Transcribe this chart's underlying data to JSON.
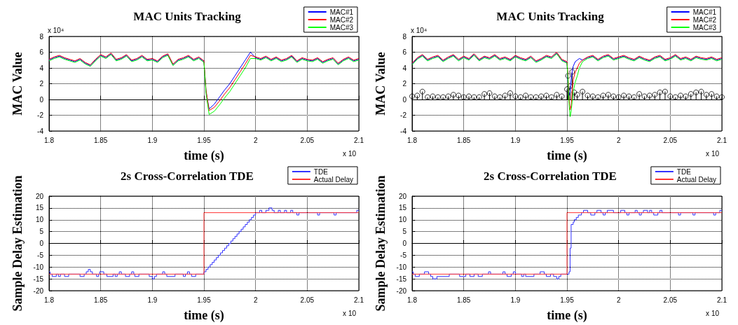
{
  "chart_data": [
    {
      "type": "line",
      "title": "MAC Units Tracking",
      "xlabel": "time (s)",
      "ylabel": "MAC Value",
      "annotations": [
        "x 10⁴",
        "x 10"
      ],
      "xlim": [
        1.8,
        2.1
      ],
      "xticks": [
        1.8,
        1.85,
        1.9,
        1.95,
        2,
        2.05,
        2.1
      ],
      "ylim": [
        -4,
        8
      ],
      "yticks": [
        -4,
        -2,
        0,
        2,
        4,
        6,
        8
      ],
      "grid": true,
      "legend": "top right",
      "x": [
        1.8,
        1.805,
        1.81,
        1.815,
        1.82,
        1.825,
        1.83,
        1.835,
        1.84,
        1.845,
        1.85,
        1.855,
        1.86,
        1.865,
        1.87,
        1.875,
        1.88,
        1.885,
        1.89,
        1.895,
        1.9,
        1.905,
        1.91,
        1.915,
        1.92,
        1.925,
        1.93,
        1.935,
        1.94,
        1.945,
        1.95,
        1.952,
        1.955,
        1.96,
        1.965,
        1.97,
        1.975,
        1.98,
        1.985,
        1.99,
        1.995,
        2.0,
        2.005,
        2.01,
        2.015,
        2.02,
        2.025,
        2.03,
        2.035,
        2.04,
        2.045,
        2.05,
        2.055,
        2.06,
        2.065,
        2.07,
        2.075,
        2.08,
        2.085,
        2.09,
        2.095,
        2.1
      ],
      "series": [
        {
          "name": "MAC#1",
          "color": "#0000ff",
          "values": [
            5.0,
            5.3,
            5.5,
            5.2,
            5.0,
            4.8,
            5.1,
            4.6,
            4.3,
            5.0,
            5.6,
            5.3,
            5.8,
            5.0,
            5.2,
            5.6,
            4.9,
            5.1,
            5.5,
            5.0,
            5.1,
            4.8,
            5.4,
            5.7,
            4.4,
            5.0,
            5.2,
            5.5,
            5.0,
            5.3,
            4.8,
            1.0,
            -1.2,
            -0.6,
            0.3,
            1.2,
            2.0,
            3.0,
            4.0,
            5.0,
            6.0,
            5.3,
            5.1,
            5.4,
            5.0,
            5.3,
            4.9,
            5.1,
            5.5,
            4.8,
            5.2,
            5.0,
            4.9,
            5.2,
            4.7,
            5.0,
            5.2,
            4.5,
            5.0,
            5.3,
            4.9,
            5.1
          ]
        },
        {
          "name": "MAC#2",
          "color": "#ff0000",
          "values": [
            5.1,
            5.4,
            5.6,
            5.3,
            5.1,
            4.9,
            5.2,
            4.7,
            4.4,
            5.1,
            5.7,
            5.4,
            5.9,
            5.1,
            5.3,
            5.7,
            5.0,
            5.2,
            5.6,
            5.1,
            5.2,
            4.9,
            5.5,
            5.8,
            4.5,
            5.1,
            5.3,
            5.6,
            5.1,
            5.4,
            4.9,
            1.2,
            -1.4,
            -1.0,
            -0.2,
            0.7,
            1.5,
            2.5,
            3.5,
            4.5,
            5.6,
            5.4,
            5.2,
            5.5,
            5.1,
            5.4,
            5.0,
            5.2,
            5.6,
            4.9,
            5.3,
            5.1,
            5.0,
            5.3,
            4.8,
            5.1,
            5.3,
            4.6,
            5.1,
            5.4,
            5.0,
            5.2
          ]
        },
        {
          "name": "MAC#3",
          "color": "#00ff00",
          "values": [
            4.9,
            5.2,
            5.4,
            5.1,
            4.9,
            4.7,
            5.0,
            4.5,
            4.2,
            4.9,
            5.5,
            5.2,
            5.7,
            4.9,
            5.1,
            5.5,
            4.8,
            5.0,
            5.4,
            4.9,
            5.0,
            4.7,
            5.3,
            5.6,
            4.3,
            4.9,
            5.1,
            5.4,
            4.9,
            5.2,
            4.7,
            0.8,
            -1.9,
            -1.5,
            -0.7,
            0.2,
            1.0,
            2.0,
            3.0,
            4.0,
            5.2,
            5.2,
            5.0,
            5.3,
            4.9,
            5.2,
            4.8,
            5.0,
            5.4,
            4.7,
            5.1,
            4.9,
            4.8,
            5.1,
            4.6,
            4.9,
            5.1,
            4.4,
            4.9,
            5.2,
            4.8,
            5.0
          ]
        }
      ]
    },
    {
      "type": "line",
      "title": "MAC Units Tracking",
      "xlabel": "time (s)",
      "ylabel": "MAC Value",
      "annotations": [
        "x 10⁴",
        "x 10"
      ],
      "xlim": [
        1.8,
        2.1
      ],
      "xticks": [
        1.8,
        1.85,
        1.9,
        1.95,
        2,
        2.05,
        2.1
      ],
      "ylim": [
        -4,
        8
      ],
      "yticks": [
        -4,
        -2,
        0,
        2,
        4,
        6,
        8
      ],
      "grid": true,
      "legend": "top right",
      "x": [
        1.8,
        1.805,
        1.81,
        1.815,
        1.82,
        1.825,
        1.83,
        1.835,
        1.84,
        1.845,
        1.85,
        1.855,
        1.86,
        1.865,
        1.87,
        1.875,
        1.88,
        1.885,
        1.89,
        1.895,
        1.9,
        1.905,
        1.91,
        1.915,
        1.92,
        1.925,
        1.93,
        1.935,
        1.94,
        1.945,
        1.95,
        1.951,
        1.952,
        1.953,
        1.954,
        1.955,
        1.956,
        1.958,
        1.96,
        1.962,
        1.965,
        1.97,
        1.975,
        1.98,
        1.985,
        1.99,
        1.995,
        2.0,
        2.005,
        2.01,
        2.015,
        2.02,
        2.025,
        2.03,
        2.035,
        2.04,
        2.045,
        2.05,
        2.055,
        2.06,
        2.065,
        2.07,
        2.075,
        2.08,
        2.085,
        2.09,
        2.095,
        2.1
      ],
      "series": [
        {
          "name": "MAC#1",
          "color": "#0000ff",
          "values": [
            4.5,
            5.2,
            5.6,
            5.0,
            5.3,
            5.5,
            4.9,
            5.3,
            5.6,
            5.0,
            5.4,
            5.1,
            5.7,
            5.0,
            5.4,
            5.2,
            5.6,
            5.1,
            5.3,
            5.0,
            5.5,
            5.2,
            5.0,
            5.4,
            4.8,
            5.1,
            5.5,
            5.3,
            5.9,
            5.0,
            4.7,
            2.0,
            0.5,
            1.0,
            2.5,
            3.5,
            4.2,
            4.8,
            5.0,
            5.2,
            5.0,
            5.3,
            5.5,
            5.0,
            5.4,
            5.6,
            5.1,
            5.3,
            5.5,
            5.2,
            5.0,
            5.4,
            5.1,
            4.9,
            5.3,
            5.5,
            5.0,
            5.2,
            5.6,
            5.1,
            5.3,
            5.0,
            5.4,
            5.2,
            5.1,
            5.3,
            5.0,
            5.2
          ]
        },
        {
          "name": "MAC#2",
          "color": "#ff0000",
          "values": [
            4.6,
            5.3,
            5.7,
            5.1,
            5.4,
            5.6,
            5.0,
            5.4,
            5.7,
            5.1,
            5.5,
            5.2,
            5.8,
            5.1,
            5.5,
            5.3,
            5.7,
            5.2,
            5.4,
            5.1,
            5.6,
            5.3,
            5.1,
            5.5,
            4.9,
            5.2,
            5.6,
            5.4,
            6.0,
            5.1,
            4.8,
            3.0,
            0.0,
            -1.3,
            -0.8,
            1.0,
            2.5,
            3.5,
            4.0,
            4.6,
            5.0,
            5.4,
            5.6,
            5.1,
            5.5,
            5.7,
            5.2,
            5.4,
            5.6,
            5.3,
            5.1,
            5.5,
            5.2,
            5.0,
            5.4,
            5.6,
            5.1,
            5.3,
            5.7,
            5.2,
            5.4,
            5.1,
            5.5,
            5.3,
            5.2,
            5.4,
            5.1,
            5.3
          ]
        },
        {
          "name": "MAC#3",
          "color": "#00ff00",
          "values": [
            4.4,
            5.1,
            5.5,
            4.9,
            5.2,
            5.4,
            4.8,
            5.2,
            5.5,
            4.9,
            5.3,
            5.0,
            5.6,
            4.9,
            5.3,
            5.1,
            5.5,
            5.0,
            5.2,
            4.9,
            5.4,
            5.1,
            4.9,
            5.3,
            4.7,
            5.0,
            5.4,
            5.2,
            5.8,
            4.9,
            4.6,
            2.5,
            -0.5,
            -2.2,
            -1.5,
            -0.3,
            1.0,
            2.2,
            3.0,
            4.0,
            4.8,
            5.2,
            5.4,
            4.9,
            5.3,
            5.5,
            5.0,
            5.2,
            5.4,
            5.1,
            4.9,
            5.3,
            5.0,
            4.8,
            5.2,
            5.4,
            4.9,
            5.1,
            5.5,
            5.0,
            5.2,
            4.9,
            5.3,
            5.1,
            5.0,
            5.2,
            4.9,
            5.1
          ]
        },
        {
          "type": "lollipop",
          "color": "#000000",
          "marker": "circle",
          "x": [
            1.8,
            1.805,
            1.81,
            1.815,
            1.82,
            1.825,
            1.83,
            1.835,
            1.84,
            1.845,
            1.85,
            1.855,
            1.86,
            1.865,
            1.87,
            1.875,
            1.88,
            1.885,
            1.89,
            1.895,
            1.9,
            1.905,
            1.91,
            1.915,
            1.92,
            1.925,
            1.93,
            1.935,
            1.94,
            1.945,
            1.95,
            1.951,
            1.953,
            1.955,
            1.957,
            1.96,
            1.965,
            1.97,
            1.975,
            1.98,
            1.985,
            1.99,
            1.995,
            2.0,
            2.005,
            2.01,
            2.015,
            2.02,
            2.025,
            2.03,
            2.035,
            2.04,
            2.045,
            2.05,
            2.055,
            2.06,
            2.065,
            2.07,
            2.075,
            2.08,
            2.085,
            2.09,
            2.095,
            2.1
          ],
          "values": [
            0.4,
            0.5,
            1.0,
            0.3,
            0.4,
            0.3,
            0.3,
            0.4,
            0.6,
            0.5,
            0.3,
            0.4,
            0.3,
            0.3,
            0.7,
            0.8,
            0.4,
            0.3,
            0.5,
            0.8,
            0.4,
            0.3,
            0.5,
            0.3,
            0.3,
            0.4,
            0.5,
            0.3,
            0.6,
            0.4,
            1.3,
            3.0,
            1.7,
            3.5,
            0.9,
            0.6,
            1.0,
            0.5,
            0.4,
            0.3,
            0.5,
            0.6,
            0.4,
            0.3,
            0.5,
            0.4,
            0.3,
            0.7,
            0.4,
            0.5,
            0.6,
            0.9,
            1.0,
            0.4,
            0.3,
            0.5,
            0.4,
            0.7,
            0.9,
            1.0,
            0.6,
            0.7,
            0.4,
            0.3
          ]
        }
      ]
    },
    {
      "type": "step",
      "title": "2s Cross-Correlation TDE",
      "xlabel": "time (s)",
      "ylabel": "Sample Delay Estimation",
      "annotations": [
        "x 10"
      ],
      "xlim": [
        1.8,
        2.1
      ],
      "xticks": [
        1.8,
        1.85,
        1.9,
        1.95,
        2,
        2.05,
        2.1
      ],
      "ylim": [
        -20,
        20
      ],
      "yticks": [
        -20,
        -15,
        -10,
        -5,
        0,
        5,
        10,
        15,
        20
      ],
      "grid": true,
      "legend": "top right",
      "series": [
        {
          "name": "TDE",
          "color": "#3333ff",
          "x": [
            1.8,
            1.801,
            1.803,
            1.807,
            1.809,
            1.811,
            1.815,
            1.819,
            1.83,
            1.834,
            1.836,
            1.838,
            1.84,
            1.842,
            1.846,
            1.848,
            1.849,
            1.853,
            1.856,
            1.862,
            1.864,
            1.866,
            1.868,
            1.87,
            1.874,
            1.878,
            1.88,
            1.882,
            1.883,
            1.887,
            1.897,
            1.9,
            1.902,
            1.904,
            1.91,
            1.912,
            1.914,
            1.922,
            1.93,
            1.932,
            1.934,
            1.936,
            1.938,
            1.942,
            1.95,
            1.952,
            1.954,
            1.956,
            1.958,
            1.96,
            1.962,
            1.964,
            1.966,
            1.968,
            1.97,
            1.972,
            1.974,
            1.976,
            1.978,
            1.98,
            1.982,
            1.984,
            1.986,
            1.988,
            1.99,
            1.992,
            1.994,
            1.996,
            1.998,
            2.0,
            2.004,
            2.006,
            2.01,
            2.013,
            2.016,
            2.018,
            2.022,
            2.024,
            2.028,
            2.03,
            2.034,
            2.036,
            2.04,
            2.042,
            2.06,
            2.062,
            2.076,
            2.078,
            2.098,
            2.1
          ],
          "values": [
            -12,
            -13,
            -14,
            -13,
            -14,
            -13,
            -14,
            -13,
            -14,
            -13,
            -12,
            -11,
            -12,
            -13,
            -14,
            -13,
            -12,
            -13,
            -14,
            -13,
            -14,
            -13,
            -12,
            -13,
            -14,
            -13,
            -12,
            -13,
            -14,
            -13,
            -14,
            -15,
            -14,
            -13,
            -12,
            -13,
            -14,
            -13,
            -14,
            -13,
            -12,
            -13,
            -14,
            -13,
            -12,
            -11,
            -10,
            -9,
            -8,
            -7,
            -6,
            -5,
            -4,
            -3,
            -2,
            -1,
            0,
            1,
            2,
            3,
            4,
            5,
            6,
            7,
            8,
            9,
            10,
            11,
            12,
            13,
            14,
            13,
            14,
            15,
            14,
            13,
            14,
            13,
            14,
            13,
            14,
            13,
            12,
            13,
            12,
            13,
            12,
            13,
            14,
            14
          ]
        },
        {
          "name": "Actual Delay",
          "color": "#ff3333",
          "x": [
            1.8,
            1.95,
            2.1
          ],
          "values": [
            -13,
            13,
            13
          ]
        }
      ]
    },
    {
      "type": "step",
      "title": "2s Cross-Correlation TDE",
      "xlabel": "time (s)",
      "ylabel": "Sample Delay Estimation",
      "annotations": [
        "x 10"
      ],
      "xlim": [
        1.8,
        2.1
      ],
      "xticks": [
        1.8,
        1.85,
        1.9,
        1.95,
        2,
        2.05,
        2.1
      ],
      "ylim": [
        -20,
        20
      ],
      "yticks": [
        -20,
        -15,
        -10,
        -5,
        0,
        5,
        10,
        15,
        20
      ],
      "grid": true,
      "legend": "top right",
      "series": [
        {
          "name": "TDE",
          "color": "#3333ff",
          "x": [
            1.8,
            1.801,
            1.803,
            1.807,
            1.812,
            1.816,
            1.818,
            1.82,
            1.824,
            1.836,
            1.846,
            1.852,
            1.856,
            1.86,
            1.864,
            1.868,
            1.874,
            1.876,
            1.888,
            1.89,
            1.892,
            1.896,
            1.898,
            1.9,
            1.906,
            1.908,
            1.91,
            1.918,
            1.924,
            1.928,
            1.93,
            1.934,
            1.937,
            1.94,
            1.942,
            1.944,
            1.952,
            1.953,
            1.954,
            1.956,
            1.957,
            1.959,
            1.961,
            1.964,
            1.966,
            1.97,
            1.973,
            1.977,
            1.979,
            1.983,
            1.985,
            1.987,
            1.989,
            1.995,
            2.002,
            2.006,
            2.008,
            2.01,
            2.016,
            2.018,
            2.02,
            2.022,
            2.024,
            2.028,
            2.03,
            2.032,
            2.034,
            2.038,
            2.04,
            2.042,
            2.058,
            2.06,
            2.072,
            2.074,
            2.092,
            2.094,
            2.098,
            2.1
          ],
          "values": [
            -12,
            -13,
            -14,
            -13,
            -12,
            -13,
            -14,
            -15,
            -14,
            -13,
            -14,
            -13,
            -14,
            -13,
            -14,
            -13,
            -12,
            -13,
            -12,
            -13,
            -14,
            -13,
            -12,
            -13,
            -14,
            -13,
            -14,
            -13,
            -12,
            -13,
            -14,
            -13,
            -14,
            -15,
            -14,
            -13,
            -12,
            -2,
            8,
            9,
            10,
            11,
            12,
            13,
            14,
            13,
            12,
            13,
            14,
            13,
            12,
            13,
            14,
            13,
            14,
            13,
            12,
            13,
            14,
            13,
            12,
            13,
            14,
            13,
            14,
            13,
            12,
            13,
            14,
            13,
            12,
            13,
            12,
            13,
            12,
            13,
            14,
            14
          ]
        },
        {
          "name": "Actual Delay",
          "color": "#ff3333",
          "x": [
            1.8,
            1.95,
            2.1
          ],
          "values": [
            -13,
            13,
            13
          ]
        }
      ]
    }
  ]
}
